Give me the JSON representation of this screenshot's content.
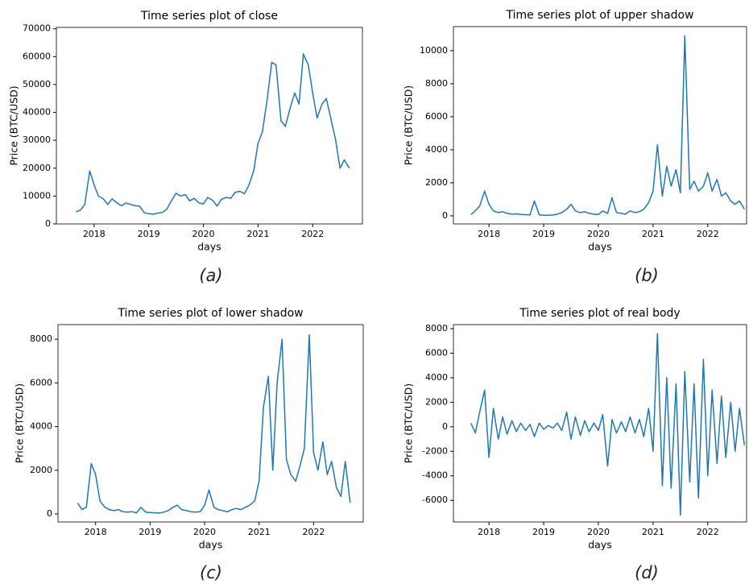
{
  "chart_data": [
    {
      "type": "line",
      "title": "Time series plot of close",
      "caption": "(a)",
      "x_label": "days",
      "y_label": "Price (BTC/USD)",
      "color": "#1f77b4",
      "x": [
        2017.67,
        2017.75,
        2017.83,
        2017.92,
        2018.0,
        2018.08,
        2018.17,
        2018.25,
        2018.33,
        2018.42,
        2018.5,
        2018.58,
        2018.67,
        2018.75,
        2018.83,
        2018.92,
        2019.0,
        2019.08,
        2019.17,
        2019.25,
        2019.33,
        2019.42,
        2019.5,
        2019.58,
        2019.67,
        2019.75,
        2019.83,
        2019.92,
        2020.0,
        2020.08,
        2020.17,
        2020.25,
        2020.33,
        2020.42,
        2020.5,
        2020.58,
        2020.67,
        2020.75,
        2020.83,
        2020.92,
        2021.0,
        2021.08,
        2021.17,
        2021.25,
        2021.33,
        2021.42,
        2021.5,
        2021.58,
        2021.67,
        2021.75,
        2021.83,
        2021.92,
        2022.0,
        2022.08,
        2022.17,
        2022.25,
        2022.33,
        2022.42,
        2022.5,
        2022.58,
        2022.67
      ],
      "values": [
        4300,
        5000,
        7000,
        19000,
        14000,
        10000,
        9000,
        7000,
        9000,
        7500,
        6500,
        7500,
        7000,
        6500,
        6400,
        4000,
        3700,
        3500,
        3900,
        4100,
        5300,
        8500,
        11000,
        10000,
        10500,
        8300,
        9200,
        7500,
        7200,
        9500,
        8500,
        6400,
        8800,
        9500,
        9200,
        11300,
        11700,
        10800,
        13800,
        19000,
        29000,
        33000,
        45000,
        58000,
        57000,
        37000,
        35000,
        41000,
        47000,
        43000,
        61000,
        57000,
        47000,
        38000,
        43000,
        45000,
        38000,
        30000,
        20000,
        23000,
        20000
      ],
      "xlim": [
        2017.31,
        2022.91
      ],
      "xticks": [
        2018,
        2019,
        2020,
        2021,
        2022
      ],
      "ylim": [
        0,
        70500
      ],
      "yticks": [
        0,
        10000,
        20000,
        30000,
        40000,
        50000,
        60000,
        70000
      ]
    },
    {
      "type": "line",
      "title": "Time series plot of upper shadow",
      "caption": "(b)",
      "x_label": "days",
      "y_label": "Price (BTC/USD)",
      "color": "#1f77b4",
      "x": [
        2017.67,
        2017.75,
        2017.83,
        2017.92,
        2018.0,
        2018.08,
        2018.17,
        2018.25,
        2018.33,
        2018.42,
        2018.5,
        2018.58,
        2018.67,
        2018.75,
        2018.83,
        2018.92,
        2019.0,
        2019.08,
        2019.17,
        2019.25,
        2019.33,
        2019.42,
        2019.5,
        2019.58,
        2019.67,
        2019.75,
        2019.83,
        2019.92,
        2020.0,
        2020.08,
        2020.17,
        2020.25,
        2020.33,
        2020.42,
        2020.5,
        2020.58,
        2020.67,
        2020.75,
        2020.83,
        2020.92,
        2021.0,
        2021.08,
        2021.17,
        2021.25,
        2021.33,
        2021.42,
        2021.5,
        2021.58,
        2021.67,
        2021.75,
        2021.83,
        2021.92,
        2022.0,
        2022.08,
        2022.17,
        2022.25,
        2022.33,
        2022.42,
        2022.5,
        2022.58,
        2022.67
      ],
      "values": [
        80,
        300,
        600,
        1500,
        700,
        300,
        200,
        250,
        150,
        100,
        120,
        90,
        70,
        60,
        900,
        50,
        40,
        30,
        50,
        100,
        200,
        400,
        700,
        300,
        200,
        250,
        150,
        100,
        80,
        300,
        150,
        1100,
        200,
        150,
        100,
        300,
        200,
        250,
        400,
        800,
        1500,
        4300,
        1200,
        3000,
        1800,
        2800,
        1400,
        10900,
        1600,
        2100,
        1500,
        1800,
        2600,
        1500,
        2200,
        1200,
        1400,
        900,
        700,
        900,
        400
      ],
      "xlim": [
        2017.35,
        2022.71
      ],
      "xticks": [
        2018,
        2019,
        2020,
        2021,
        2022
      ],
      "ylim": [
        -490,
        11460
      ],
      "yticks": [
        0,
        2000,
        4000,
        6000,
        8000,
        10000
      ]
    },
    {
      "type": "line",
      "title": "Time series plot of lower shadow",
      "caption": "(c)",
      "x_label": "days",
      "y_label": "Price (BTC/USD)",
      "color": "#1f77b4",
      "x": [
        2017.67,
        2017.75,
        2017.83,
        2017.92,
        2018.0,
        2018.08,
        2018.17,
        2018.25,
        2018.33,
        2018.42,
        2018.5,
        2018.58,
        2018.67,
        2018.75,
        2018.83,
        2018.92,
        2019.0,
        2019.08,
        2019.17,
        2019.25,
        2019.33,
        2019.42,
        2019.5,
        2019.58,
        2019.67,
        2019.75,
        2019.83,
        2019.92,
        2020.0,
        2020.08,
        2020.17,
        2020.25,
        2020.33,
        2020.42,
        2020.5,
        2020.58,
        2020.67,
        2020.75,
        2020.83,
        2020.92,
        2021.0,
        2021.08,
        2021.17,
        2021.25,
        2021.33,
        2021.42,
        2021.5,
        2021.58,
        2021.67,
        2021.75,
        2021.83,
        2021.92,
        2022.0,
        2022.08,
        2022.17,
        2022.25,
        2022.33,
        2022.42,
        2022.5,
        2022.58,
        2022.67
      ],
      "values": [
        500,
        200,
        300,
        2300,
        1800,
        600,
        300,
        200,
        150,
        200,
        100,
        80,
        100,
        50,
        300,
        80,
        60,
        50,
        40,
        80,
        150,
        300,
        400,
        200,
        150,
        100,
        80,
        100,
        400,
        1100,
        300,
        200,
        150,
        100,
        200,
        250,
        200,
        300,
        400,
        600,
        1500,
        4900,
        6300,
        2000,
        6000,
        8000,
        2500,
        1800,
        1500,
        2200,
        3000,
        8200,
        2800,
        2000,
        3300,
        1800,
        2400,
        1200,
        800,
        2400,
        500
      ],
      "xlim": [
        2017.31,
        2022.91
      ],
      "xticks": [
        2018,
        2019,
        2020,
        2021,
        2022
      ],
      "ylim": [
        -370,
        8670
      ],
      "yticks": [
        0,
        2000,
        4000,
        6000,
        8000
      ]
    },
    {
      "type": "line",
      "title": "Time series plot of real body",
      "caption": "(d)",
      "x_label": "days",
      "y_label": "Price (BTC/USD)",
      "color": "#1f77b4",
      "x": [
        2017.67,
        2017.75,
        2017.83,
        2017.92,
        2018.0,
        2018.08,
        2018.17,
        2018.25,
        2018.33,
        2018.42,
        2018.5,
        2018.58,
        2018.67,
        2018.75,
        2018.83,
        2018.92,
        2019.0,
        2019.08,
        2019.17,
        2019.25,
        2019.33,
        2019.42,
        2019.5,
        2019.58,
        2019.67,
        2019.75,
        2019.83,
        2019.92,
        2020.0,
        2020.08,
        2020.17,
        2020.25,
        2020.33,
        2020.42,
        2020.5,
        2020.58,
        2020.67,
        2020.75,
        2020.83,
        2020.92,
        2021.0,
        2021.08,
        2021.17,
        2021.25,
        2021.33,
        2021.42,
        2021.5,
        2021.58,
        2021.67,
        2021.75,
        2021.83,
        2021.92,
        2022.0,
        2022.08,
        2022.17,
        2022.25,
        2022.33,
        2022.42,
        2022.5,
        2022.58,
        2022.67
      ],
      "values": [
        300,
        -500,
        1200,
        3000,
        -2500,
        1500,
        -1000,
        800,
        -600,
        500,
        -400,
        300,
        -300,
        200,
        -800,
        300,
        -200,
        100,
        -100,
        300,
        -300,
        1200,
        -1000,
        800,
        -700,
        500,
        -400,
        300,
        -300,
        1000,
        -3200,
        600,
        -500,
        400,
        -400,
        800,
        -500,
        600,
        -800,
        1500,
        -2000,
        7600,
        -4800,
        4000,
        -5000,
        3500,
        -7200,
        4500,
        -4500,
        3500,
        -5800,
        5500,
        -4000,
        3000,
        -3000,
        2500,
        -2500,
        2000,
        -2000,
        1500,
        -1500
      ],
      "xlim": [
        2017.35,
        2022.71
      ],
      "xticks": [
        2018,
        2019,
        2020,
        2021,
        2022
      ],
      "ylim": [
        -7760,
        8330
      ],
      "yticks": [
        -6000,
        -4000,
        -2000,
        0,
        2000,
        4000,
        6000,
        8000
      ]
    }
  ]
}
